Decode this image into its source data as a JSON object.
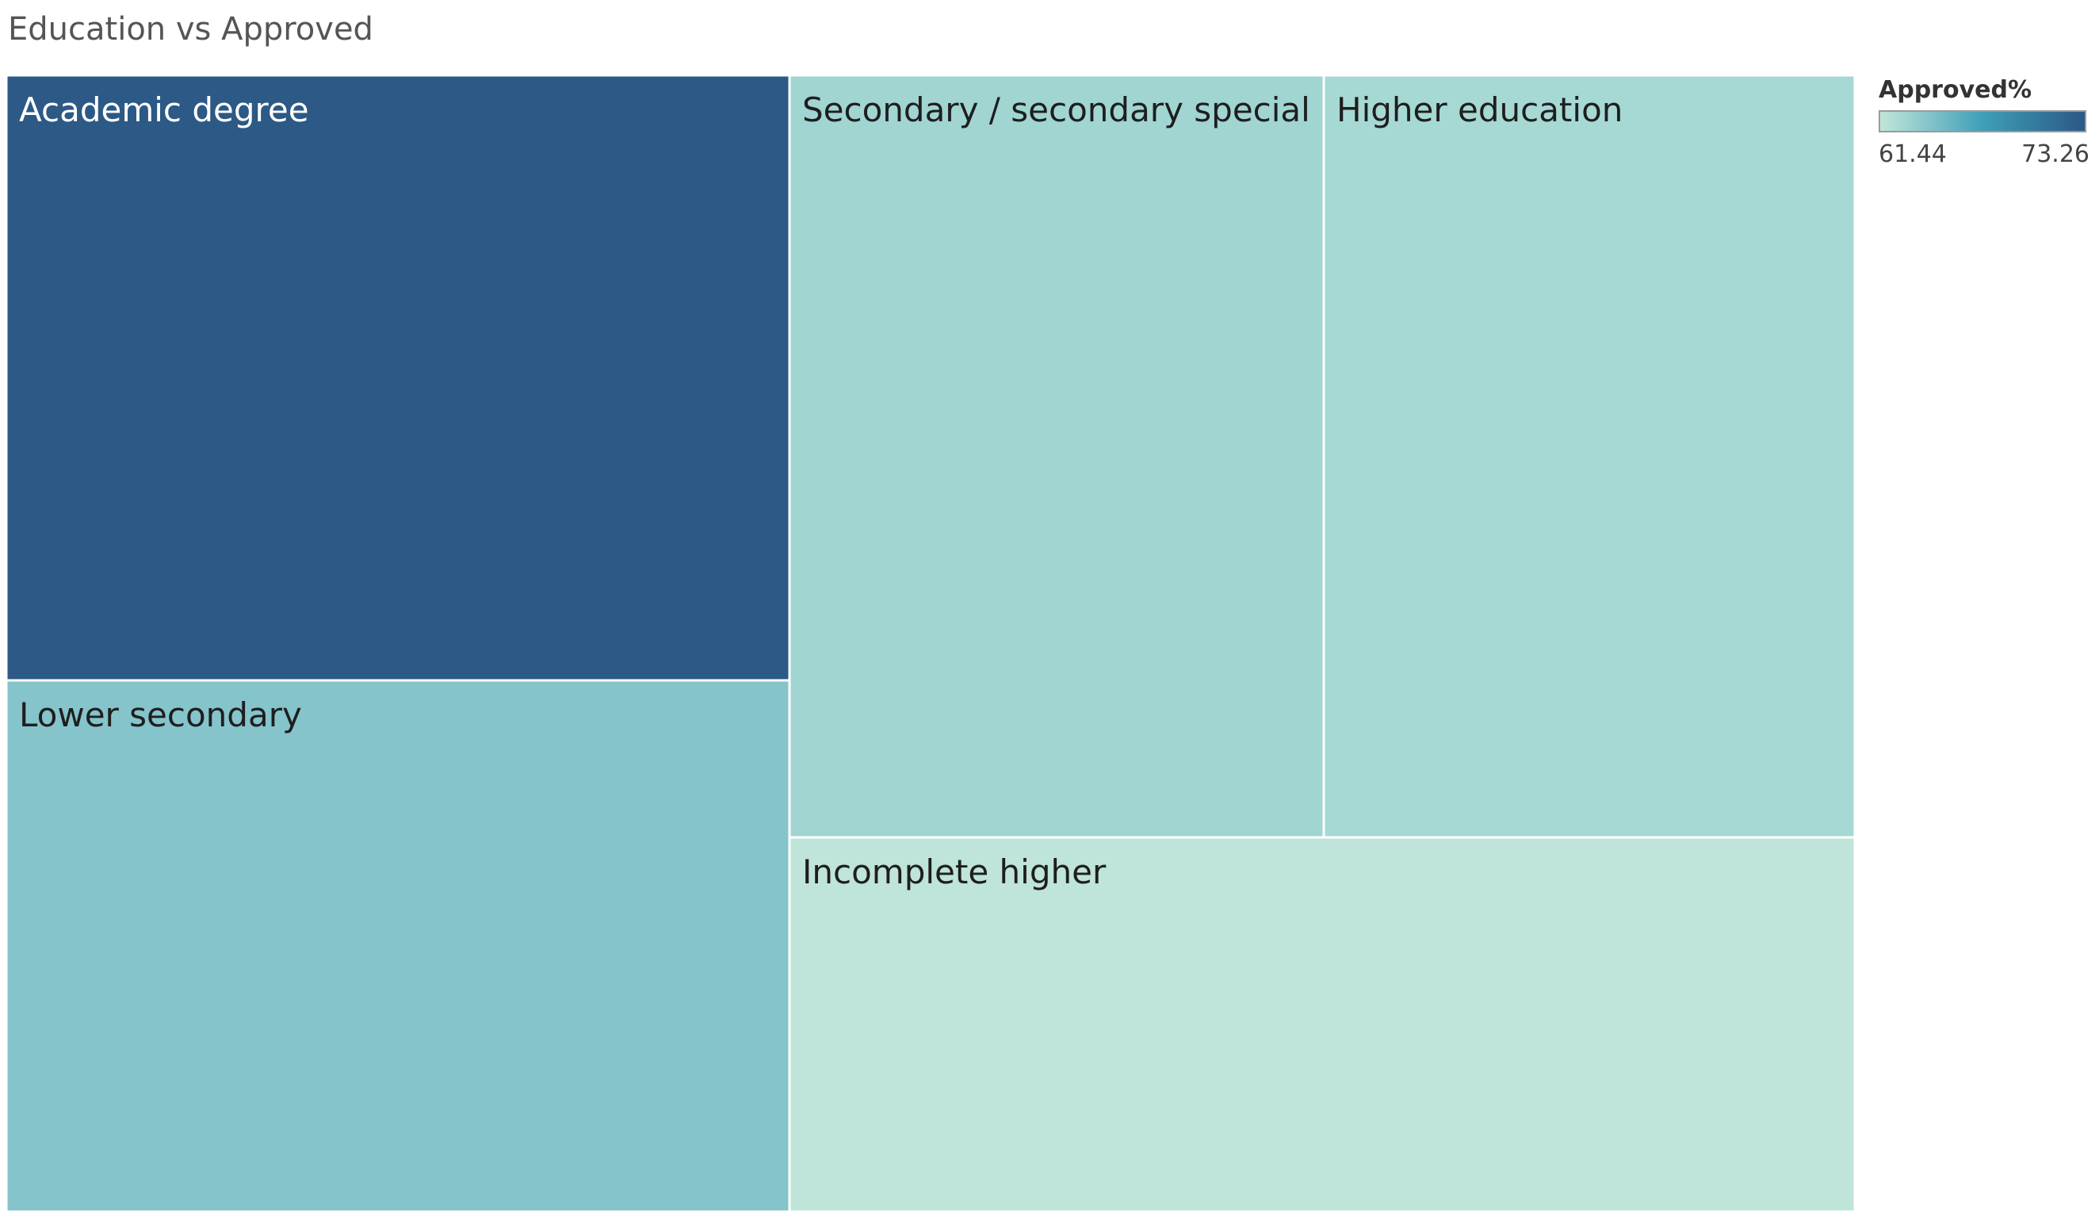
{
  "chart_data": {
    "type": "treemap",
    "title": "Education vs Approved",
    "color_legend": {
      "title": "Approved%",
      "min": 61.44,
      "max": 73.26,
      "min_label": "61.44",
      "max_label": "73.26",
      "colors": [
        "#c2e6da",
        "#3f9fb8",
        "#2b5886"
      ]
    },
    "nodes": [
      {
        "name": "Academic degree",
        "approved_pct": 73.26,
        "color": "#2c5985",
        "label_color": "#ffffff"
      },
      {
        "name": "Lower secondary",
        "approved_pct": 66.5,
        "color": "#85c4cb",
        "label_color": "#1e1e1e"
      },
      {
        "name": "Secondary / secondary special",
        "approved_pct": 63.2,
        "color": "#a0d5d2",
        "label_color": "#1e1e1e"
      },
      {
        "name": "Higher education",
        "approved_pct": 62.8,
        "color": "#a6d9d3",
        "label_color": "#1e1e1e"
      },
      {
        "name": "Incomplete higher",
        "approved_pct": 61.44,
        "color": "#bfe4d9",
        "label_color": "#1e1e1e"
      }
    ]
  }
}
